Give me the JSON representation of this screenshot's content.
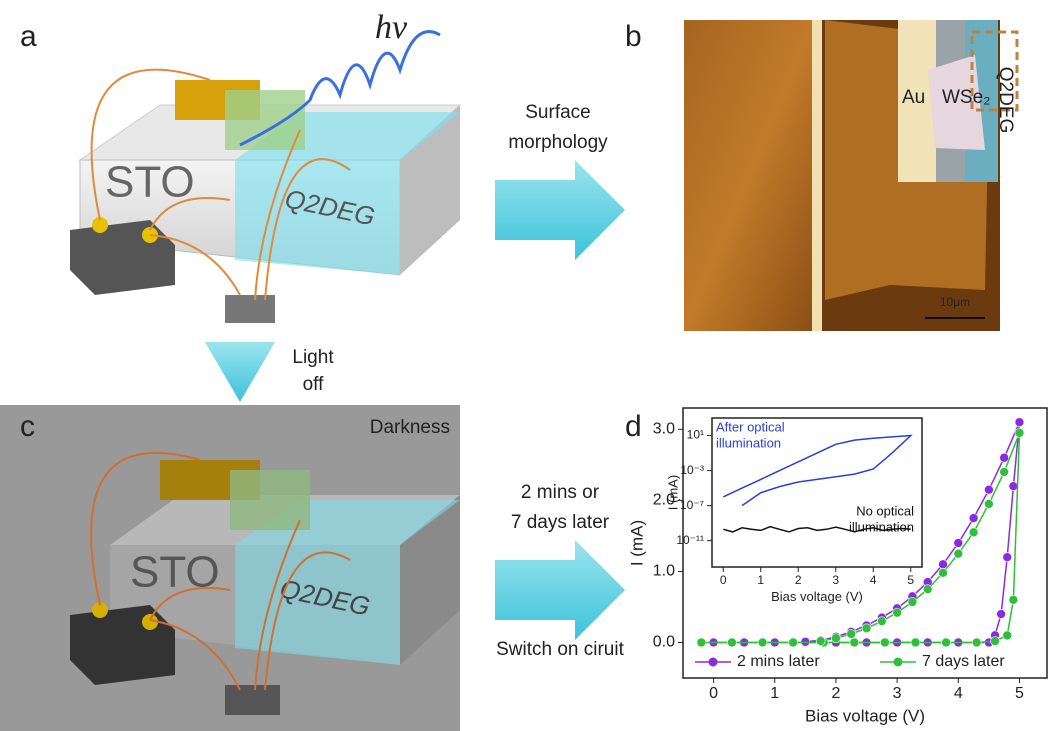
{
  "panels": {
    "a": {
      "label": "a",
      "photon": "hν",
      "substrate": "STO",
      "channel": "Q2DEG"
    },
    "b": {
      "label": "b",
      "inset_labels": [
        "Au",
        "WSe₂",
        "Q2DEG"
      ],
      "scale_bar": "10μm"
    },
    "c": {
      "label": "c",
      "caption": "Darkness",
      "substrate": "STO",
      "channel": "Q2DEG"
    },
    "d": {
      "label": "d"
    }
  },
  "arrows": {
    "a_to_b": [
      "Surface",
      "morphology"
    ],
    "a_to_c": [
      "Light",
      "off"
    ],
    "c_to_d": {
      "top": [
        "2 mins or",
        "7 days later"
      ],
      "bottom": "Switch on ciruit"
    }
  },
  "chart_data": [
    {
      "type": "line",
      "x_label": "Bias voltage (V)",
      "y_label": "I (mA)",
      "xlim": [
        -0.5,
        5.45
      ],
      "ylim": [
        -0.5,
        3.3
      ],
      "xticks": [
        0,
        1,
        2,
        3,
        4,
        5
      ],
      "yticks": [
        {
          "value": 0,
          "label": "0.0"
        },
        {
          "value": 1,
          "label": "1.0"
        },
        {
          "value": 2,
          "label": "2.0"
        },
        {
          "value": 3,
          "label": "3.0"
        }
      ],
      "markers": true,
      "legend": "bottom",
      "series": [
        {
          "name": "2 mins later",
          "color": "#8a2be2",
          "x": [
            0,
            0.5,
            1,
            1.5,
            2,
            2.5,
            3,
            3.5,
            4,
            4.5,
            4.6,
            4.7,
            4.8,
            4.9,
            5.0,
            4.75,
            4.5,
            4.25,
            4.0,
            3.75,
            3.5,
            3.25,
            3.0,
            2.75,
            2.5,
            2.25,
            2.0,
            1.75,
            1.5
          ],
          "values": [
            0,
            0,
            0,
            0,
            0,
            0,
            0,
            0,
            0,
            0,
            0.1,
            0.4,
            1.2,
            2.2,
            3.1,
            2.6,
            2.15,
            1.75,
            1.4,
            1.1,
            0.85,
            0.65,
            0.48,
            0.35,
            0.24,
            0.15,
            0.08,
            0.03,
            0.01
          ]
        },
        {
          "name": "7 days later",
          "color": "#2fbf3a",
          "x": [
            -0.2,
            0.3,
            0.8,
            1.3,
            1.8,
            2.3,
            2.8,
            3.3,
            3.8,
            4.3,
            4.6,
            4.8,
            4.9,
            5.0,
            4.75,
            4.5,
            4.25,
            4.0,
            3.75,
            3.5,
            3.25,
            3.0,
            2.75,
            2.5,
            2.25,
            2.0,
            1.75
          ],
          "values": [
            0,
            0,
            0,
            0,
            0,
            0,
            0,
            0,
            0,
            0,
            0.02,
            0.1,
            0.6,
            2.95,
            2.4,
            1.95,
            1.55,
            1.25,
            0.98,
            0.75,
            0.57,
            0.42,
            0.3,
            0.2,
            0.12,
            0.06,
            0.02
          ]
        }
      ]
    },
    {
      "type": "line",
      "x_label": "Bias voltage (V)",
      "y_label": "I (mA)",
      "log_y": true,
      "xlim": [
        -0.3,
        5.3
      ],
      "ylim": [
        1e-14,
        1000
      ],
      "xticks": [
        0,
        1,
        2,
        3,
        4,
        5
      ],
      "yticks": [
        {
          "value": 10,
          "label": "10¹"
        },
        {
          "value": 0.001,
          "label": "10⁻³"
        },
        {
          "value": 1e-07,
          "label": "10⁻⁷"
        },
        {
          "value": 1e-11,
          "label": "10⁻¹¹"
        }
      ],
      "annotations": [
        "After optical",
        "illumination",
        "No optical",
        "illumination"
      ],
      "series": [
        {
          "color": "#2a3fd6",
          "x": [
            0.5,
            1,
            1.5,
            2,
            2.5,
            3,
            3.5,
            4,
            4.5,
            5,
            4.5,
            4,
            3.5,
            3,
            2.5,
            2,
            1.5,
            1,
            0.5,
            0
          ],
          "values": [
            1e-07,
            3e-06,
            1.5e-05,
            5e-05,
            0.0001,
            0.0002,
            0.0004,
            0.0015,
            0.1,
            10,
            7,
            5,
            3,
            1,
            0.1,
            0.01,
            0.001,
            0.0001,
            1e-05,
            1e-06
          ]
        },
        {
          "color": "#111111",
          "x": [
            0,
            0.25,
            0.5,
            0.75,
            1,
            1.25,
            1.5,
            1.75,
            2,
            2.25,
            2.5,
            2.75,
            3,
            3.25,
            3.5,
            3.75,
            4,
            4.25,
            4.5,
            4.75,
            5
          ],
          "values": [
            2e-10,
            1e-10,
            3e-10,
            2e-10,
            1.5e-10,
            4e-10,
            2e-10,
            1e-10,
            2.5e-10,
            3e-10,
            1.5e-10,
            2e-10,
            3.5e-10,
            2e-10,
            1e-10,
            2e-10,
            3e-10,
            1.5e-10,
            2e-10,
            2.5e-10,
            2e-10
          ]
        }
      ]
    }
  ]
}
